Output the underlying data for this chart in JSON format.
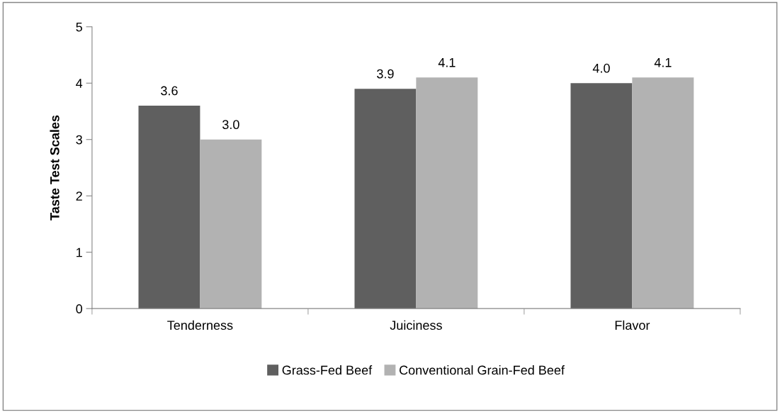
{
  "chart_data": {
    "type": "bar",
    "ylabel": "Taste Test Scales",
    "categories": [
      "Tenderness",
      "Juiciness",
      "Flavor"
    ],
    "series": [
      {
        "name": "Grass-Fed Beef",
        "color": "#5f5f5f",
        "values": [
          3.6,
          3.9,
          4.0
        ],
        "value_labels": [
          "3.6",
          "3.9",
          "4.0"
        ]
      },
      {
        "name": "Conventional Grain-Fed Beef",
        "color": "#b2b2b2",
        "values": [
          3.0,
          4.1,
          4.1
        ],
        "value_labels": [
          "3.0",
          "4.1",
          "4.1"
        ]
      }
    ],
    "ylim": [
      0,
      5
    ],
    "yticks": [
      0,
      1,
      2,
      3,
      4,
      5
    ],
    "grid": false,
    "legend": "bottom"
  }
}
